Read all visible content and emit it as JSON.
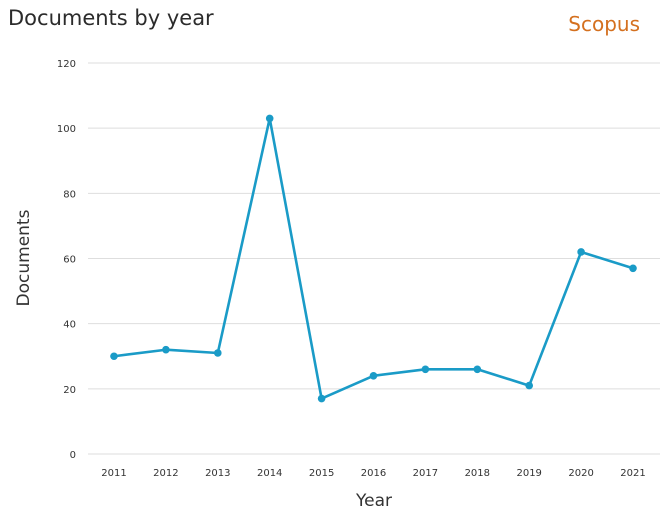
{
  "header": {
    "title": "Documents by year",
    "brand": "Scopus"
  },
  "chart_data": {
    "type": "line",
    "title": "Documents by year",
    "xlabel": "Year",
    "ylabel": "Documents",
    "categories": [
      "2011",
      "2012",
      "2013",
      "2014",
      "2015",
      "2016",
      "2017",
      "2018",
      "2019",
      "2020",
      "2021"
    ],
    "series": [
      {
        "values": [
          30,
          32,
          31,
          103,
          17,
          24,
          26,
          26,
          21,
          62,
          57
        ]
      }
    ],
    "ylim": [
      0,
      120
    ],
    "yticks": [
      0,
      20,
      40,
      60,
      80,
      100,
      120
    ],
    "grid": true,
    "colors": {
      "line": "#1a9bc7",
      "grid": "#dedede"
    }
  }
}
